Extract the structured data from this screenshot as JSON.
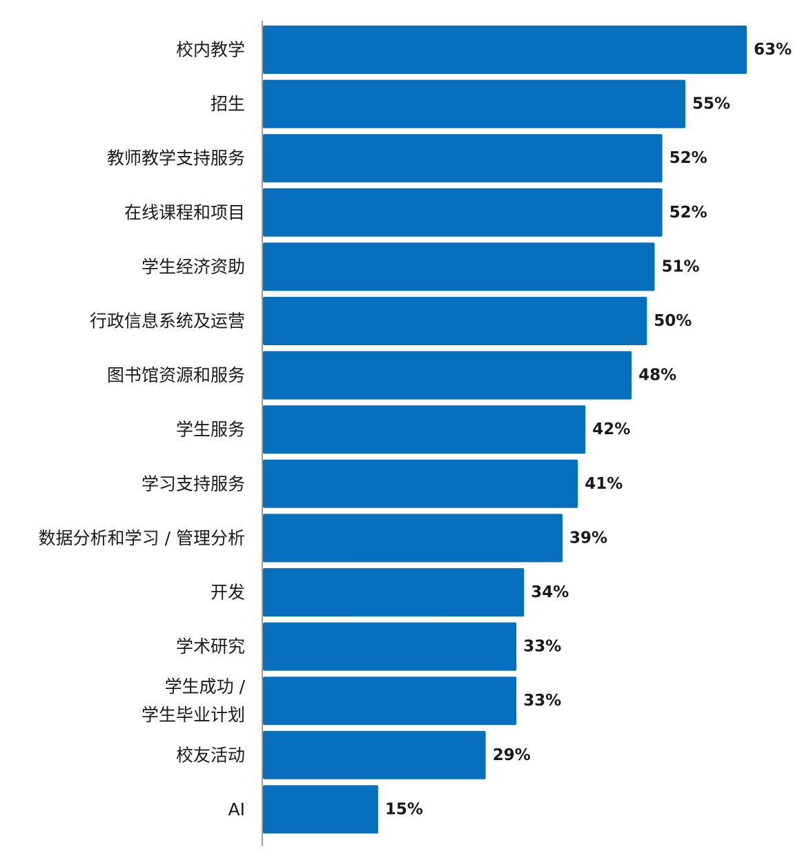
{
  "chart_data": {
    "type": "bar",
    "orientation": "horizontal",
    "title": "",
    "xlabel": "",
    "ylabel": "",
    "xlim": [
      0,
      63
    ],
    "grid": false,
    "legend": "none",
    "bar_color": "#0670BE",
    "axis_color": "#9a9a9a",
    "categories": [
      "校内教学",
      "招生",
      "教师教学支持服务",
      "在线课程和项目",
      "学生经济资助",
      "行政信息系统及运营",
      "图书馆资源和服务",
      "学生服务",
      "学习支持服务",
      "数据分析和学习 / 管理分析",
      "开发",
      "学术研究",
      "学生成功 /\n学生毕业计划",
      "校友活动",
      "AI"
    ],
    "values": [
      63,
      55,
      52,
      52,
      51,
      50,
      48,
      42,
      41,
      39,
      34,
      33,
      33,
      29,
      15
    ],
    "value_labels": [
      "63%",
      "55%",
      "52%",
      "52%",
      "51%",
      "50%",
      "48%",
      "42%",
      "41%",
      "39%",
      "34%",
      "33%",
      "33%",
      "29%",
      "15%"
    ]
  }
}
